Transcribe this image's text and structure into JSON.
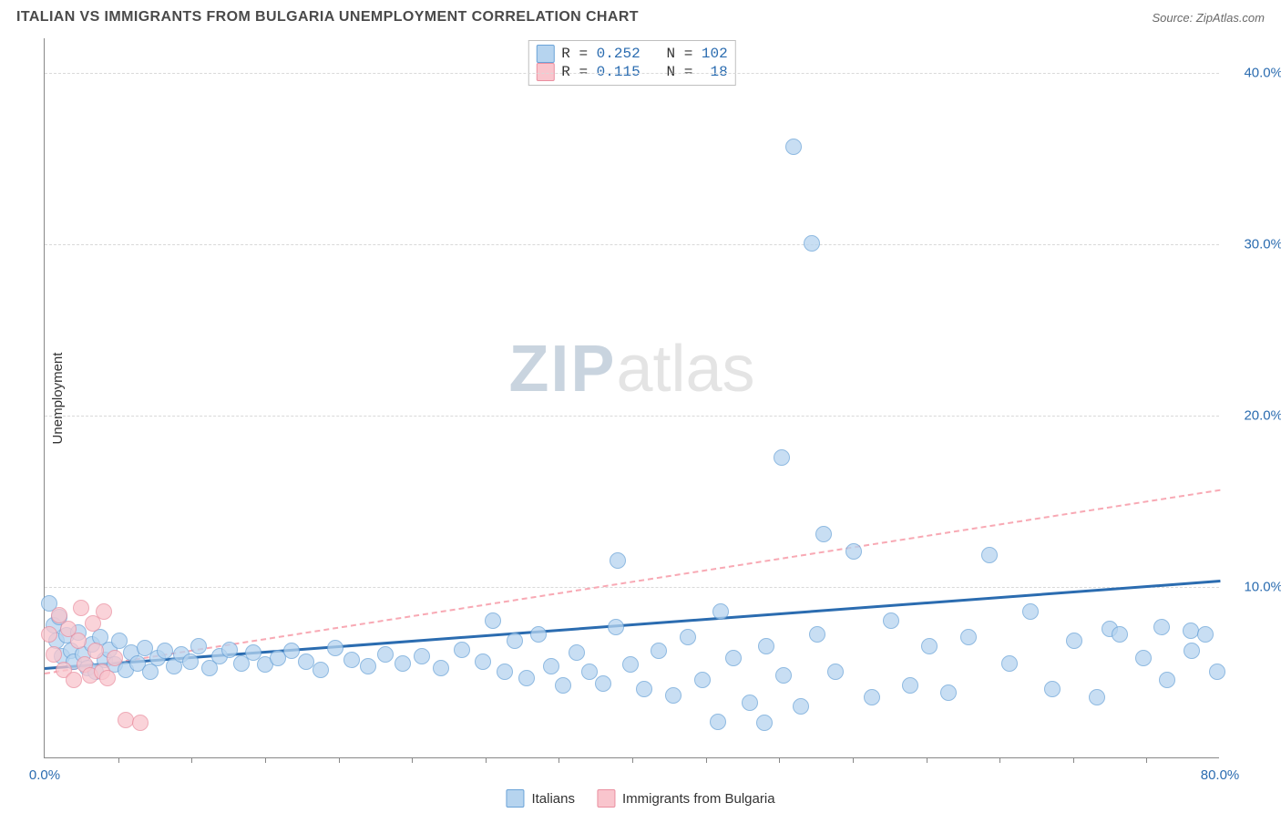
{
  "header": {
    "title": "ITALIAN VS IMMIGRANTS FROM BULGARIA UNEMPLOYMENT CORRELATION CHART",
    "source_prefix": "Source: ",
    "source_name": "ZipAtlas.com"
  },
  "watermark": {
    "part1": "ZIP",
    "part2": "atlas"
  },
  "chart": {
    "type": "scatter",
    "ylabel": "Unemployment",
    "xlim": [
      0,
      80
    ],
    "ylim": [
      0,
      42
    ],
    "x_ticks": [
      0,
      80
    ],
    "x_tick_labels": [
      "0.0%",
      "80.0%"
    ],
    "x_minor_ticks": [
      5,
      10,
      15,
      20,
      25,
      30,
      35,
      40,
      45,
      50,
      55,
      60,
      65,
      70,
      75
    ],
    "y_grid": [
      10,
      20,
      30,
      40
    ],
    "y_tick_labels": [
      "10.0%",
      "20.0%",
      "30.0%",
      "40.0%"
    ],
    "background_color": "#ffffff",
    "grid_color": "#d9d9d9",
    "axis_color": "#888888",
    "label_color": "#2b6cb0",
    "marker_radius": 9,
    "marker_border_width": 1
  },
  "series": {
    "italians": {
      "label": "Italians",
      "fill": "#b6d4ef",
      "stroke": "#6aa3d8",
      "opacity": 0.75,
      "R": "0.252",
      "N": "102",
      "trend": {
        "x1": 0,
        "y1": 5.3,
        "x2": 80,
        "y2": 10.4,
        "color": "#2b6cb0",
        "width": 3,
        "dash": false
      },
      "points": [
        [
          0.3,
          9.0
        ],
        [
          0.6,
          7.7
        ],
        [
          0.8,
          6.8
        ],
        [
          1.0,
          8.2
        ],
        [
          1.2,
          5.9
        ],
        [
          1.5,
          7.1
        ],
        [
          1.8,
          6.2
        ],
        [
          2.0,
          5.6
        ],
        [
          2.3,
          7.3
        ],
        [
          2.6,
          6.0
        ],
        [
          2.9,
          5.2
        ],
        [
          3.2,
          6.6
        ],
        [
          3.5,
          5.0
        ],
        [
          3.8,
          7.0
        ],
        [
          4.1,
          5.7
        ],
        [
          4.4,
          6.3
        ],
        [
          4.8,
          5.4
        ],
        [
          5.1,
          6.8
        ],
        [
          5.5,
          5.1
        ],
        [
          5.9,
          6.1
        ],
        [
          6.3,
          5.5
        ],
        [
          6.8,
          6.4
        ],
        [
          7.2,
          5.0
        ],
        [
          7.7,
          5.8
        ],
        [
          8.2,
          6.2
        ],
        [
          8.8,
          5.3
        ],
        [
          9.3,
          6.0
        ],
        [
          9.9,
          5.6
        ],
        [
          10.5,
          6.5
        ],
        [
          11.2,
          5.2
        ],
        [
          11.9,
          5.9
        ],
        [
          12.6,
          6.3
        ],
        [
          13.4,
          5.5
        ],
        [
          14.2,
          6.1
        ],
        [
          15.0,
          5.4
        ],
        [
          15.9,
          5.8
        ],
        [
          16.8,
          6.2
        ],
        [
          17.8,
          5.6
        ],
        [
          18.8,
          5.1
        ],
        [
          19.8,
          6.4
        ],
        [
          20.9,
          5.7
        ],
        [
          22.0,
          5.3
        ],
        [
          23.2,
          6.0
        ],
        [
          24.4,
          5.5
        ],
        [
          25.7,
          5.9
        ],
        [
          27.0,
          5.2
        ],
        [
          28.4,
          6.3
        ],
        [
          29.8,
          5.6
        ],
        [
          30.5,
          8.0
        ],
        [
          31.3,
          5.0
        ],
        [
          32.0,
          6.8
        ],
        [
          32.8,
          4.6
        ],
        [
          33.6,
          7.2
        ],
        [
          34.5,
          5.3
        ],
        [
          35.3,
          4.2
        ],
        [
          36.2,
          6.1
        ],
        [
          37.1,
          5.0
        ],
        [
          38.0,
          4.3
        ],
        [
          38.9,
          7.6
        ],
        [
          39.0,
          11.5
        ],
        [
          39.9,
          5.4
        ],
        [
          40.8,
          4.0
        ],
        [
          41.8,
          6.2
        ],
        [
          42.8,
          3.6
        ],
        [
          43.8,
          7.0
        ],
        [
          44.8,
          4.5
        ],
        [
          45.8,
          2.1
        ],
        [
          46.0,
          8.5
        ],
        [
          46.9,
          5.8
        ],
        [
          48.0,
          3.2
        ],
        [
          49.0,
          2.0
        ],
        [
          49.1,
          6.5
        ],
        [
          50.2,
          17.5
        ],
        [
          50.3,
          4.8
        ],
        [
          51.0,
          35.6
        ],
        [
          51.5,
          3.0
        ],
        [
          52.2,
          30.0
        ],
        [
          52.6,
          7.2
        ],
        [
          53.0,
          13.0
        ],
        [
          53.8,
          5.0
        ],
        [
          55.1,
          12.0
        ],
        [
          56.3,
          3.5
        ],
        [
          57.6,
          8.0
        ],
        [
          58.9,
          4.2
        ],
        [
          60.2,
          6.5
        ],
        [
          61.5,
          3.8
        ],
        [
          62.9,
          7.0
        ],
        [
          64.3,
          11.8
        ],
        [
          65.7,
          5.5
        ],
        [
          67.1,
          8.5
        ],
        [
          68.6,
          4.0
        ],
        [
          70.1,
          6.8
        ],
        [
          71.6,
          3.5
        ],
        [
          72.5,
          7.5
        ],
        [
          73.2,
          7.2
        ],
        [
          74.8,
          5.8
        ],
        [
          76.0,
          7.6
        ],
        [
          76.4,
          4.5
        ],
        [
          78.0,
          7.4
        ],
        [
          78.1,
          6.2
        ],
        [
          79.0,
          7.2
        ],
        [
          79.8,
          5.0
        ]
      ]
    },
    "bulgaria": {
      "label": "Immigrants from Bulgaria",
      "fill": "#f9c5cd",
      "stroke": "#ea8fa0",
      "opacity": 0.75,
      "R": "0.115",
      "N": "18",
      "trend": {
        "x1": 0,
        "y1": 5.0,
        "x2": 80,
        "y2": 15.7,
        "color": "#f8a9b4",
        "width": 2,
        "dash": true
      },
      "points": [
        [
          0.3,
          7.2
        ],
        [
          0.6,
          6.0
        ],
        [
          1.0,
          8.3
        ],
        [
          1.3,
          5.1
        ],
        [
          1.6,
          7.5
        ],
        [
          2.0,
          4.5
        ],
        [
          2.3,
          6.8
        ],
        [
          2.7,
          5.4
        ],
        [
          2.5,
          8.7
        ],
        [
          3.1,
          4.8
        ],
        [
          3.5,
          6.2
        ],
        [
          3.9,
          5.0
        ],
        [
          4.0,
          8.5
        ],
        [
          4.3,
          4.6
        ],
        [
          4.8,
          5.8
        ],
        [
          5.5,
          2.2
        ],
        [
          6.5,
          2.0
        ],
        [
          3.3,
          7.8
        ]
      ]
    }
  },
  "legend_top": {
    "text_color": "#2b6cb0",
    "label_color": "#333333"
  },
  "legend_bottom": {
    "items": [
      "italians",
      "bulgaria"
    ]
  }
}
